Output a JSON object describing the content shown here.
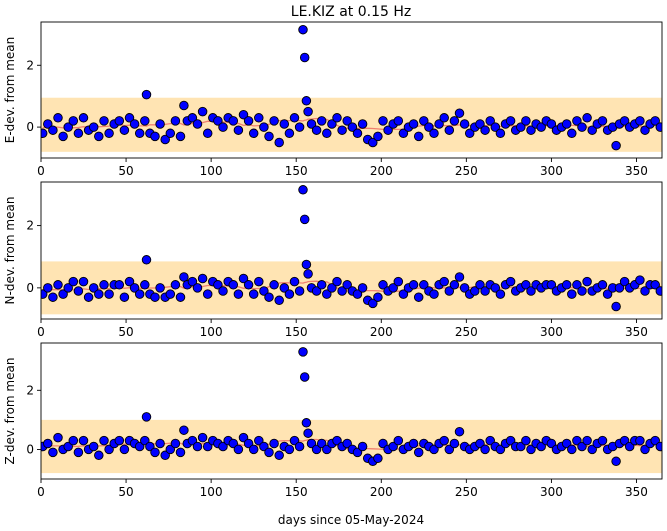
{
  "chart_data": {
    "type": "scatter",
    "title": "LE.KIZ at 0.15 Hz",
    "xlabel": "days since 05-May-2024",
    "xlim": [
      0,
      365
    ],
    "x_ticks": [
      0,
      50,
      100,
      150,
      200,
      250,
      300,
      350
    ],
    "y_ticks": [
      0,
      2
    ],
    "colors": {
      "point_fill": "#0000ff",
      "point_edge": "#000000",
      "band": "#ffe4b3",
      "mean_line": "#f08070"
    },
    "panels": [
      {
        "ylabel": "E-dev. from mean",
        "ylim": [
          -1.0,
          3.4
        ],
        "band": [
          -0.8,
          0.95
        ],
        "series": [
          {
            "x": [
              1,
              4,
              7,
              10,
              13,
              16,
              19,
              22,
              25,
              28,
              31,
              34,
              37,
              40,
              43,
              46,
              49,
              52,
              55,
              58,
              61,
              62,
              64,
              67,
              70,
              73,
              76,
              79,
              82,
              84,
              86,
              89,
              92,
              95,
              98,
              101,
              104,
              107,
              110,
              113,
              116,
              119,
              122,
              125,
              128,
              131,
              134,
              137,
              140,
              143,
              146,
              149,
              152,
              154,
              155,
              156,
              157,
              159,
              162,
              165,
              168,
              171,
              174,
              177,
              180,
              183,
              186,
              189,
              192,
              195,
              198,
              201,
              204,
              207,
              210,
              213,
              216,
              219,
              222,
              225,
              228,
              231,
              234,
              237,
              240,
              243,
              246,
              249,
              252,
              255,
              258,
              261,
              264,
              267,
              270,
              273,
              276,
              279,
              282,
              285,
              288,
              291,
              294,
              297,
              300,
              303,
              306,
              309,
              312,
              315,
              318,
              321,
              324,
              327,
              330,
              333,
              336,
              338,
              340,
              343,
              346,
              349,
              352,
              355,
              358,
              361,
              364
            ],
            "y": [
              -0.2,
              0.1,
              -0.1,
              0.3,
              -0.3,
              0.0,
              0.2,
              -0.2,
              0.3,
              -0.1,
              0.0,
              -0.3,
              0.2,
              -0.2,
              0.1,
              0.2,
              -0.1,
              0.3,
              0.1,
              -0.2,
              0.2,
              1.05,
              -0.2,
              -0.3,
              0.1,
              -0.4,
              -0.2,
              0.2,
              -0.3,
              0.7,
              0.2,
              0.3,
              0.1,
              0.5,
              -0.2,
              0.3,
              0.2,
              0.0,
              0.3,
              0.2,
              -0.1,
              0.4,
              0.2,
              -0.2,
              0.3,
              0.0,
              -0.3,
              0.2,
              -0.5,
              0.1,
              -0.2,
              0.3,
              0.0,
              3.15,
              2.25,
              0.85,
              0.5,
              0.1,
              -0.1,
              0.2,
              -0.2,
              0.1,
              0.3,
              -0.1,
              0.2,
              0.0,
              -0.2,
              0.1,
              -0.4,
              -0.5,
              -0.3,
              0.2,
              -0.1,
              0.1,
              0.2,
              -0.2,
              0.0,
              0.1,
              -0.3,
              0.2,
              0.0,
              -0.2,
              0.1,
              0.3,
              -0.1,
              0.2,
              0.45,
              0.1,
              -0.2,
              0.0,
              0.1,
              -0.1,
              0.2,
              0.0,
              -0.2,
              0.1,
              0.2,
              -0.1,
              0.0,
              0.2,
              -0.1,
              0.1,
              0.0,
              0.2,
              0.1,
              -0.1,
              0.0,
              0.1,
              -0.2,
              0.2,
              0.0,
              0.3,
              -0.1,
              0.1,
              0.2,
              -0.1,
              0.0,
              -0.6,
              0.1,
              0.2,
              0.0,
              0.1,
              0.2,
              -0.1,
              0.1,
              0.2,
              0.0
            ]
          }
        ]
      },
      {
        "ylabel": "N-dev. from mean",
        "ylim": [
          -1.0,
          3.4
        ],
        "band": [
          -0.85,
          0.85
        ],
        "series": [
          {
            "x": [
              1,
              4,
              7,
              10,
              13,
              16,
              19,
              22,
              25,
              28,
              31,
              34,
              37,
              40,
              43,
              46,
              49,
              52,
              55,
              58,
              61,
              62,
              64,
              67,
              70,
              73,
              76,
              79,
              82,
              84,
              86,
              89,
              92,
              95,
              98,
              101,
              104,
              107,
              110,
              113,
              116,
              119,
              122,
              125,
              128,
              131,
              134,
              137,
              140,
              143,
              146,
              149,
              152,
              154,
              155,
              156,
              157,
              159,
              162,
              165,
              168,
              171,
              174,
              177,
              180,
              183,
              186,
              189,
              192,
              195,
              198,
              201,
              204,
              207,
              210,
              213,
              216,
              219,
              222,
              225,
              228,
              231,
              234,
              237,
              240,
              243,
              246,
              249,
              252,
              255,
              258,
              261,
              264,
              267,
              270,
              273,
              276,
              279,
              282,
              285,
              288,
              291,
              294,
              297,
              300,
              303,
              306,
              309,
              312,
              315,
              318,
              321,
              324,
              327,
              330,
              333,
              336,
              338,
              340,
              343,
              346,
              349,
              352,
              355,
              358,
              361,
              364
            ],
            "y": [
              -0.2,
              0.0,
              -0.3,
              0.1,
              -0.2,
              0.0,
              0.2,
              -0.1,
              0.2,
              -0.3,
              0.0,
              -0.2,
              0.1,
              -0.2,
              0.1,
              0.1,
              -0.3,
              0.2,
              0.0,
              -0.2,
              0.1,
              0.9,
              -0.2,
              -0.3,
              0.0,
              -0.3,
              -0.2,
              0.1,
              -0.3,
              0.35,
              0.1,
              0.2,
              0.0,
              0.3,
              -0.2,
              0.2,
              0.1,
              -0.1,
              0.2,
              0.1,
              -0.2,
              0.3,
              0.1,
              -0.2,
              0.2,
              -0.1,
              -0.3,
              0.1,
              -0.4,
              0.0,
              -0.2,
              0.2,
              -0.1,
              3.15,
              2.2,
              0.75,
              0.45,
              0.0,
              -0.1,
              0.1,
              -0.2,
              0.0,
              0.2,
              -0.1,
              0.1,
              -0.1,
              -0.2,
              0.0,
              -0.4,
              -0.5,
              -0.3,
              0.1,
              -0.1,
              0.0,
              0.2,
              -0.2,
              0.0,
              0.1,
              -0.3,
              0.1,
              -0.1,
              -0.2,
              0.1,
              0.2,
              -0.1,
              0.1,
              0.35,
              0.0,
              -0.2,
              -0.1,
              0.1,
              -0.1,
              0.1,
              0.0,
              -0.2,
              0.1,
              0.2,
              -0.1,
              0.0,
              0.1,
              -0.1,
              0.1,
              0.0,
              0.1,
              0.1,
              -0.1,
              0.0,
              0.1,
              -0.2,
              0.1,
              -0.1,
              0.2,
              -0.1,
              0.0,
              0.1,
              -0.2,
              0.0,
              -0.6,
              0.0,
              0.2,
              0.0,
              0.1,
              0.25,
              -0.1,
              0.1,
              0.1,
              -0.1
            ]
          }
        ]
      },
      {
        "ylabel": "Z-dev. from mean",
        "ylim": [
          -1.0,
          3.6
        ],
        "band": [
          -0.8,
          1.0
        ],
        "series": [
          {
            "x": [
              1,
              4,
              7,
              10,
              13,
              16,
              19,
              22,
              25,
              28,
              31,
              34,
              37,
              40,
              43,
              46,
              49,
              52,
              55,
              58,
              61,
              62,
              64,
              67,
              70,
              73,
              76,
              79,
              82,
              84,
              86,
              89,
              92,
              95,
              98,
              101,
              104,
              107,
              110,
              113,
              116,
              119,
              122,
              125,
              128,
              131,
              134,
              137,
              140,
              143,
              146,
              149,
              152,
              154,
              155,
              156,
              157,
              159,
              162,
              165,
              168,
              171,
              174,
              177,
              180,
              183,
              186,
              189,
              192,
              195,
              198,
              201,
              204,
              207,
              210,
              213,
              216,
              219,
              222,
              225,
              228,
              231,
              234,
              237,
              240,
              243,
              246,
              249,
              252,
              255,
              258,
              261,
              264,
              267,
              270,
              273,
              276,
              279,
              282,
              285,
              288,
              291,
              294,
              297,
              300,
              303,
              306,
              309,
              312,
              315,
              318,
              321,
              324,
              327,
              330,
              333,
              336,
              338,
              340,
              343,
              346,
              349,
              352,
              355,
              358,
              361,
              364
            ],
            "y": [
              0.1,
              0.2,
              -0.1,
              0.4,
              0.0,
              0.1,
              0.3,
              -0.1,
              0.3,
              0.0,
              0.1,
              -0.2,
              0.3,
              0.0,
              0.2,
              0.3,
              0.0,
              0.3,
              0.2,
              0.1,
              0.3,
              1.1,
              0.1,
              -0.1,
              0.2,
              -0.2,
              0.0,
              0.2,
              -0.1,
              0.65,
              0.2,
              0.3,
              0.1,
              0.4,
              0.1,
              0.3,
              0.2,
              0.1,
              0.3,
              0.2,
              0.0,
              0.4,
              0.2,
              0.0,
              0.3,
              0.1,
              -0.1,
              0.2,
              -0.2,
              0.1,
              0.0,
              0.3,
              0.1,
              3.3,
              2.45,
              0.9,
              0.55,
              0.2,
              0.0,
              0.2,
              0.0,
              0.2,
              0.3,
              0.1,
              0.2,
              0.0,
              -0.1,
              0.1,
              -0.3,
              -0.4,
              -0.3,
              0.2,
              0.0,
              0.1,
              0.3,
              0.0,
              0.1,
              0.2,
              -0.1,
              0.2,
              0.1,
              0.0,
              0.2,
              0.3,
              0.0,
              0.2,
              0.6,
              0.1,
              0.0,
              0.1,
              0.2,
              0.0,
              0.3,
              0.1,
              0.0,
              0.2,
              0.3,
              0.1,
              0.1,
              0.3,
              0.0,
              0.2,
              0.1,
              0.3,
              0.2,
              0.0,
              0.1,
              0.2,
              0.0,
              0.3,
              0.1,
              0.3,
              0.0,
              0.2,
              0.3,
              0.0,
              0.1,
              -0.4,
              0.2,
              0.3,
              0.1,
              0.3,
              0.3,
              0.0,
              0.2,
              0.3,
              0.1
            ]
          }
        ]
      }
    ]
  }
}
